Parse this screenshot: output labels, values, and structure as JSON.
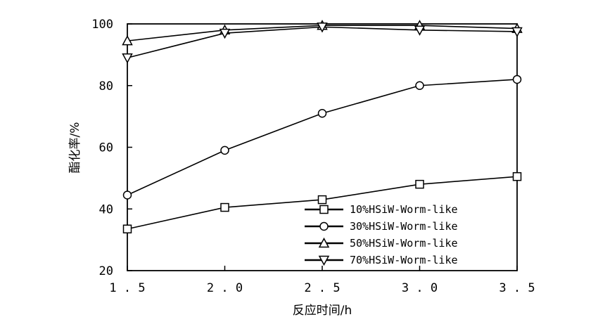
{
  "chart_data": {
    "type": "line",
    "xlabel": "反应时间/h",
    "ylabel": "酯化率/%",
    "xlim": [
      1.5,
      3.5
    ],
    "ylim": [
      20,
      100
    ],
    "x_ticks": [
      "1.5",
      "2.0",
      "2.5",
      "3.0",
      "3.5"
    ],
    "y_ticks": [
      "20",
      "40",
      "60",
      "80",
      "100"
    ],
    "x": [
      1.5,
      2.0,
      2.5,
      3.0,
      3.5
    ],
    "grid": false,
    "legend_position": "bottom-right",
    "series": [
      {
        "name": "10%HSiW-Worm-like",
        "marker": "square",
        "values": [
          33.5,
          40.5,
          43.0,
          48.0,
          50.5
        ]
      },
      {
        "name": "30%HSiW-Worm-like",
        "marker": "circle",
        "values": [
          44.5,
          59.0,
          71.0,
          80.0,
          82.0
        ]
      },
      {
        "name": "50%HSiW-Worm-like",
        "marker": "triangle-up",
        "values": [
          94.5,
          98.0,
          99.5,
          99.5,
          98.5
        ]
      },
      {
        "name": "70%HSiW-Worm-like",
        "marker": "triangle-down",
        "values": [
          89.0,
          97.0,
          99.0,
          98.0,
          97.5
        ]
      }
    ]
  }
}
